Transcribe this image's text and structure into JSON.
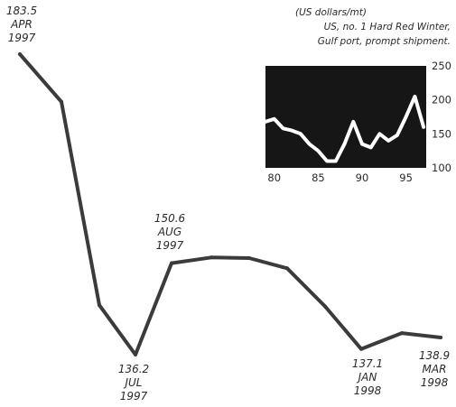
{
  "chart_data": [
    {
      "type": "line",
      "x": [
        "APR 1997",
        "MAY 1997",
        "JUN 1997",
        "JUL 1997",
        "AUG 1997",
        "SEP 1997",
        "OCT 1997",
        "NOV 1997",
        "DEC 1997",
        "JAN 1998",
        "FEB 1998",
        "MAR 1998"
      ],
      "values": [
        183.5,
        176.0,
        144.0,
        136.2,
        150.6,
        151.5,
        151.4,
        149.8,
        143.8,
        137.1,
        139.6,
        138.9
      ],
      "ylim": [
        133,
        186
      ],
      "line_color": "#3b3b3b",
      "annotations": [
        {
          "index": 0,
          "value": "183.5",
          "month": "APR",
          "year": "1997"
        },
        {
          "index": 3,
          "value": "136.2",
          "month": "JUL",
          "year": "1997"
        },
        {
          "index": 4,
          "value": "150.6",
          "month": "AUG",
          "year": "1997"
        },
        {
          "index": 9,
          "value": "137.1",
          "month": "JAN",
          "year": "1998"
        },
        {
          "index": 11,
          "value": "138.9",
          "month": "MAR",
          "year": "1998"
        }
      ]
    },
    {
      "type": "line",
      "x": [
        79,
        80,
        81,
        82,
        83,
        84,
        85,
        86,
        87,
        88,
        89,
        90,
        91,
        92,
        93,
        94,
        95,
        96,
        97
      ],
      "values": [
        168,
        172,
        158,
        155,
        150,
        135,
        125,
        110,
        110,
        135,
        168,
        135,
        130,
        150,
        140,
        148,
        175,
        205,
        160
      ],
      "xticks": [
        "80",
        "85",
        "90",
        "95"
      ],
      "yticks": [
        "100",
        "150",
        "200",
        "250"
      ],
      "xlim": [
        79,
        97.3
      ],
      "ylim": [
        100,
        250
      ],
      "note_lines": [
        "(US dollars/mt)",
        "US, no. 1 Hard Red Winter,",
        "Gulf port, prompt shipment."
      ],
      "background_color": "#161616",
      "line_color": "#ffffff"
    }
  ]
}
